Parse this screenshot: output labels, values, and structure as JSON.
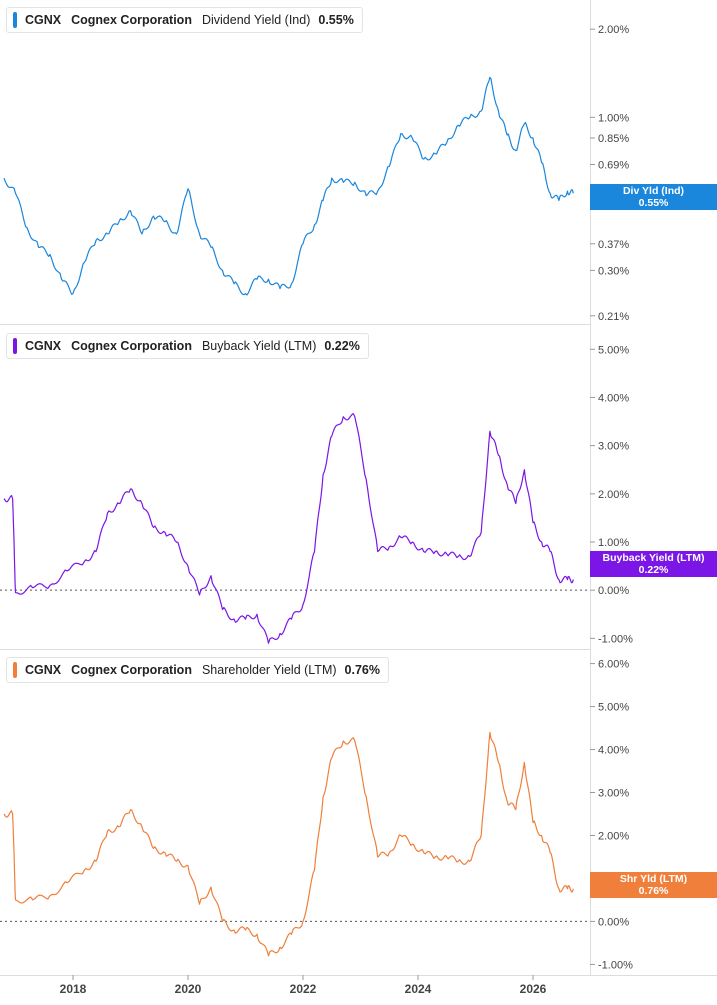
{
  "legends": [
    {
      "ticker": "CGNX",
      "company": "Cognex Corporation",
      "metric": "Dividend Yield (Ind)",
      "value": "0.55%"
    },
    {
      "ticker": "CGNX",
      "company": "Cognex Corporation",
      "metric": "Buyback Yield (LTM)",
      "value": "0.22%"
    },
    {
      "ticker": "CGNX",
      "company": "Cognex Corporation",
      "metric": "Shareholder Yield (LTM)",
      "value": "0.76%"
    }
  ],
  "value_tags": [
    {
      "label": "Div Yld (Ind)",
      "value": "0.55%"
    },
    {
      "label": "Buyback Yield (LTM)",
      "value": "0.22%"
    },
    {
      "label": "Shr Yld (LTM)",
      "value": "0.76%"
    }
  ],
  "colors": {
    "dividend": "#1a86dc",
    "buyback": "#7b16e6",
    "shareholder": "#f07f3c",
    "grid": "#dddddd",
    "axis_text": "#444444"
  },
  "chart_data": [
    {
      "type": "line",
      "scale": "log",
      "ylim": [
        0.2,
        2.4
      ],
      "y_ticks": [
        {
          "value": 2.0,
          "label": "2.00%"
        },
        {
          "value": 1.0,
          "label": "1.00%"
        },
        {
          "value": 0.85,
          "label": "0.85%"
        },
        {
          "value": 0.69,
          "label": "0.69%"
        },
        {
          "value": 0.52,
          "label": "0.52%"
        },
        {
          "value": 0.37,
          "label": "0.37%"
        },
        {
          "value": 0.3,
          "label": "0.30%"
        },
        {
          "value": 0.21,
          "label": "0.21%"
        }
      ],
      "series": [
        {
          "name": "Dividend Yield (Ind)",
          "x": [
            2016.8,
            2017.0,
            2017.2,
            2017.4,
            2017.6,
            2017.8,
            2018.0,
            2018.2,
            2018.4,
            2018.6,
            2018.8,
            2019.0,
            2019.2,
            2019.4,
            2019.6,
            2019.8,
            2020.0,
            2020.2,
            2020.4,
            2020.6,
            2020.8,
            2021.0,
            2021.2,
            2021.4,
            2021.6,
            2021.8,
            2022.0,
            2022.2,
            2022.35,
            2022.5,
            2022.7,
            2022.9,
            2023.1,
            2023.3,
            2023.5,
            2023.7,
            2023.9,
            2024.1,
            2024.3,
            2024.5,
            2024.7,
            2024.9,
            2025.1,
            2025.25,
            2025.4,
            2025.55,
            2025.7,
            2025.85,
            2026.0,
            2026.15,
            2026.3,
            2026.45,
            2026.6,
            2026.7
          ],
          "values": [
            0.62,
            0.55,
            0.42,
            0.36,
            0.34,
            0.28,
            0.25,
            0.32,
            0.38,
            0.4,
            0.44,
            0.48,
            0.4,
            0.46,
            0.44,
            0.4,
            0.57,
            0.4,
            0.36,
            0.3,
            0.27,
            0.25,
            0.28,
            0.28,
            0.26,
            0.27,
            0.37,
            0.43,
            0.52,
            0.62,
            0.6,
            0.6,
            0.54,
            0.56,
            0.68,
            0.88,
            0.85,
            0.72,
            0.75,
            0.82,
            0.94,
            1.0,
            1.05,
            1.37,
            1.05,
            0.87,
            0.77,
            0.95,
            0.85,
            0.7,
            0.55,
            0.52,
            0.56,
            0.55
          ]
        }
      ]
    },
    {
      "type": "line",
      "ylim": [
        -1.2,
        5.4
      ],
      "y_ticks": [
        {
          "value": 5,
          "label": "5.00%"
        },
        {
          "value": 4,
          "label": "4.00%"
        },
        {
          "value": 3,
          "label": "3.00%"
        },
        {
          "value": 2,
          "label": "2.00%"
        },
        {
          "value": 1,
          "label": "1.00%"
        },
        {
          "value": 0,
          "label": "0.00%"
        },
        {
          "value": -1,
          "label": "-1.00%"
        }
      ],
      "zero_line": true,
      "series": [
        {
          "name": "Buyback Yield (LTM)",
          "x": [
            2016.8,
            2016.95,
            2017.0,
            2017.3,
            2017.6,
            2017.9,
            2018.2,
            2018.4,
            2018.6,
            2018.8,
            2019.0,
            2019.2,
            2019.4,
            2019.6,
            2019.8,
            2020.0,
            2020.2,
            2020.4,
            2020.6,
            2020.8,
            2021.0,
            2021.2,
            2021.4,
            2021.6,
            2021.8,
            2022.0,
            2022.2,
            2022.35,
            2022.5,
            2022.7,
            2022.9,
            2023.1,
            2023.3,
            2023.5,
            2023.7,
            2023.9,
            2024.1,
            2024.3,
            2024.5,
            2024.7,
            2024.9,
            2025.1,
            2025.25,
            2025.4,
            2025.55,
            2025.7,
            2025.85,
            2026.0,
            2026.15,
            2026.3,
            2026.45,
            2026.6,
            2026.7
          ],
          "values": [
            1.9,
            1.9,
            -0.05,
            0.05,
            0.1,
            0.4,
            0.6,
            0.8,
            1.6,
            1.8,
            2.1,
            1.8,
            1.3,
            1.2,
            1.0,
            0.5,
            -0.1,
            0.3,
            -0.4,
            -0.6,
            -0.6,
            -0.5,
            -1.1,
            -0.9,
            -0.6,
            -0.3,
            0.8,
            2.4,
            3.2,
            3.6,
            3.6,
            2.3,
            0.8,
            0.9,
            1.1,
            1.0,
            0.8,
            0.8,
            0.75,
            0.7,
            0.7,
            1.2,
            3.3,
            2.8,
            2.2,
            1.8,
            2.5,
            1.4,
            1.0,
            0.8,
            0.22,
            0.22,
            0.22
          ]
        }
      ]
    },
    {
      "type": "line",
      "ylim": [
        -1.2,
        6.2
      ],
      "y_ticks": [
        {
          "value": 6,
          "label": "6.00%"
        },
        {
          "value": 5,
          "label": "5.00%"
        },
        {
          "value": 4,
          "label": "4.00%"
        },
        {
          "value": 3,
          "label": "3.00%"
        },
        {
          "value": 2,
          "label": "2.00%"
        },
        {
          "value": 0,
          "label": "0.00%"
        },
        {
          "value": -1,
          "label": "-1.00%"
        }
      ],
      "zero_line": true,
      "series": [
        {
          "name": "Shareholder Yield (LTM)",
          "x": [
            2016.8,
            2016.95,
            2017.0,
            2017.3,
            2017.6,
            2017.9,
            2018.2,
            2018.4,
            2018.6,
            2018.8,
            2019.0,
            2019.2,
            2019.4,
            2019.6,
            2019.8,
            2020.0,
            2020.2,
            2020.4,
            2020.6,
            2020.8,
            2021.0,
            2021.2,
            2021.4,
            2021.6,
            2021.8,
            2022.0,
            2022.2,
            2022.35,
            2022.5,
            2022.7,
            2022.9,
            2023.1,
            2023.3,
            2023.5,
            2023.7,
            2023.9,
            2024.1,
            2024.3,
            2024.5,
            2024.7,
            2024.9,
            2025.1,
            2025.25,
            2025.4,
            2025.55,
            2025.7,
            2025.85,
            2026.0,
            2026.15,
            2026.3,
            2026.45,
            2026.6,
            2026.7
          ],
          "values": [
            2.5,
            2.5,
            0.5,
            0.5,
            0.6,
            0.9,
            1.2,
            1.4,
            2.1,
            2.2,
            2.6,
            2.2,
            1.7,
            1.6,
            1.4,
            1.3,
            0.4,
            0.8,
            0.0,
            -0.2,
            -0.2,
            -0.3,
            -0.8,
            -0.6,
            -0.3,
            0.0,
            1.2,
            2.9,
            3.8,
            4.2,
            4.2,
            2.9,
            1.5,
            1.6,
            2.0,
            1.8,
            1.6,
            1.5,
            1.5,
            1.4,
            1.4,
            2.0,
            4.4,
            3.7,
            2.8,
            2.6,
            3.7,
            2.3,
            2.0,
            1.6,
            0.76,
            0.76,
            0.76
          ]
        }
      ]
    }
  ],
  "x_axis": {
    "ticks": [
      {
        "value": 2018,
        "label": "2018"
      },
      {
        "value": 2020,
        "label": "2020"
      },
      {
        "value": 2022,
        "label": "2022"
      },
      {
        "value": 2024,
        "label": "2024"
      },
      {
        "value": 2026,
        "label": "2026"
      }
    ]
  }
}
